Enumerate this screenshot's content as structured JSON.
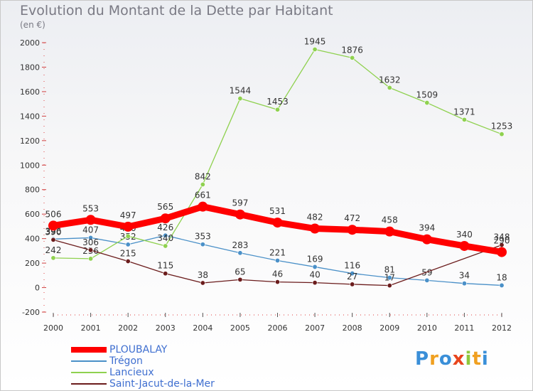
{
  "chart_data": {
    "type": "line",
    "title": "Evolution du Montant de la Dette par Habitant",
    "subtitle": "(en €)",
    "x": [
      "2000",
      "2001",
      "2002",
      "2003",
      "2004",
      "2005",
      "2006",
      "2007",
      "2008",
      "2009",
      "2010",
      "2011",
      "2012"
    ],
    "yticks": [
      -200,
      0,
      200,
      400,
      600,
      800,
      1000,
      1200,
      1400,
      1600,
      1800,
      2000
    ],
    "ylim": [
      -200,
      2000
    ],
    "grid": false,
    "legend_position": "bottom-left",
    "series": [
      {
        "name": "PLOUBALAY",
        "color": "#ff0000",
        "values": [
          506,
          553,
          497,
          565,
          661,
          597,
          531,
          482,
          472,
          458,
          394,
          340,
          290
        ]
      },
      {
        "name": "Trégon",
        "color": "#4a90c8",
        "values": [
          396,
          407,
          352,
          426,
          353,
          283,
          221,
          169,
          116,
          81,
          59,
          34,
          18
        ]
      },
      {
        "name": "Lancieux",
        "color": "#8fd14f",
        "values": [
          242,
          236,
          420,
          340,
          842,
          1544,
          1453,
          1945,
          1876,
          1632,
          1509,
          1371,
          1253
        ]
      },
      {
        "name": "Saint-Jacut-de-la-Mer",
        "color": "#6b1c1c",
        "values": [
          390,
          306,
          215,
          115,
          38,
          65,
          46,
          40,
          27,
          17,
          null,
          null,
          348
        ]
      }
    ]
  },
  "legend": {
    "items": [
      {
        "label": "PLOUBALAY"
      },
      {
        "label": "Trégon"
      },
      {
        "label": "Lancieux"
      },
      {
        "label": "Saint-Jacut-de-la-Mer"
      }
    ]
  },
  "logo": {
    "text": "Proxiti"
  }
}
